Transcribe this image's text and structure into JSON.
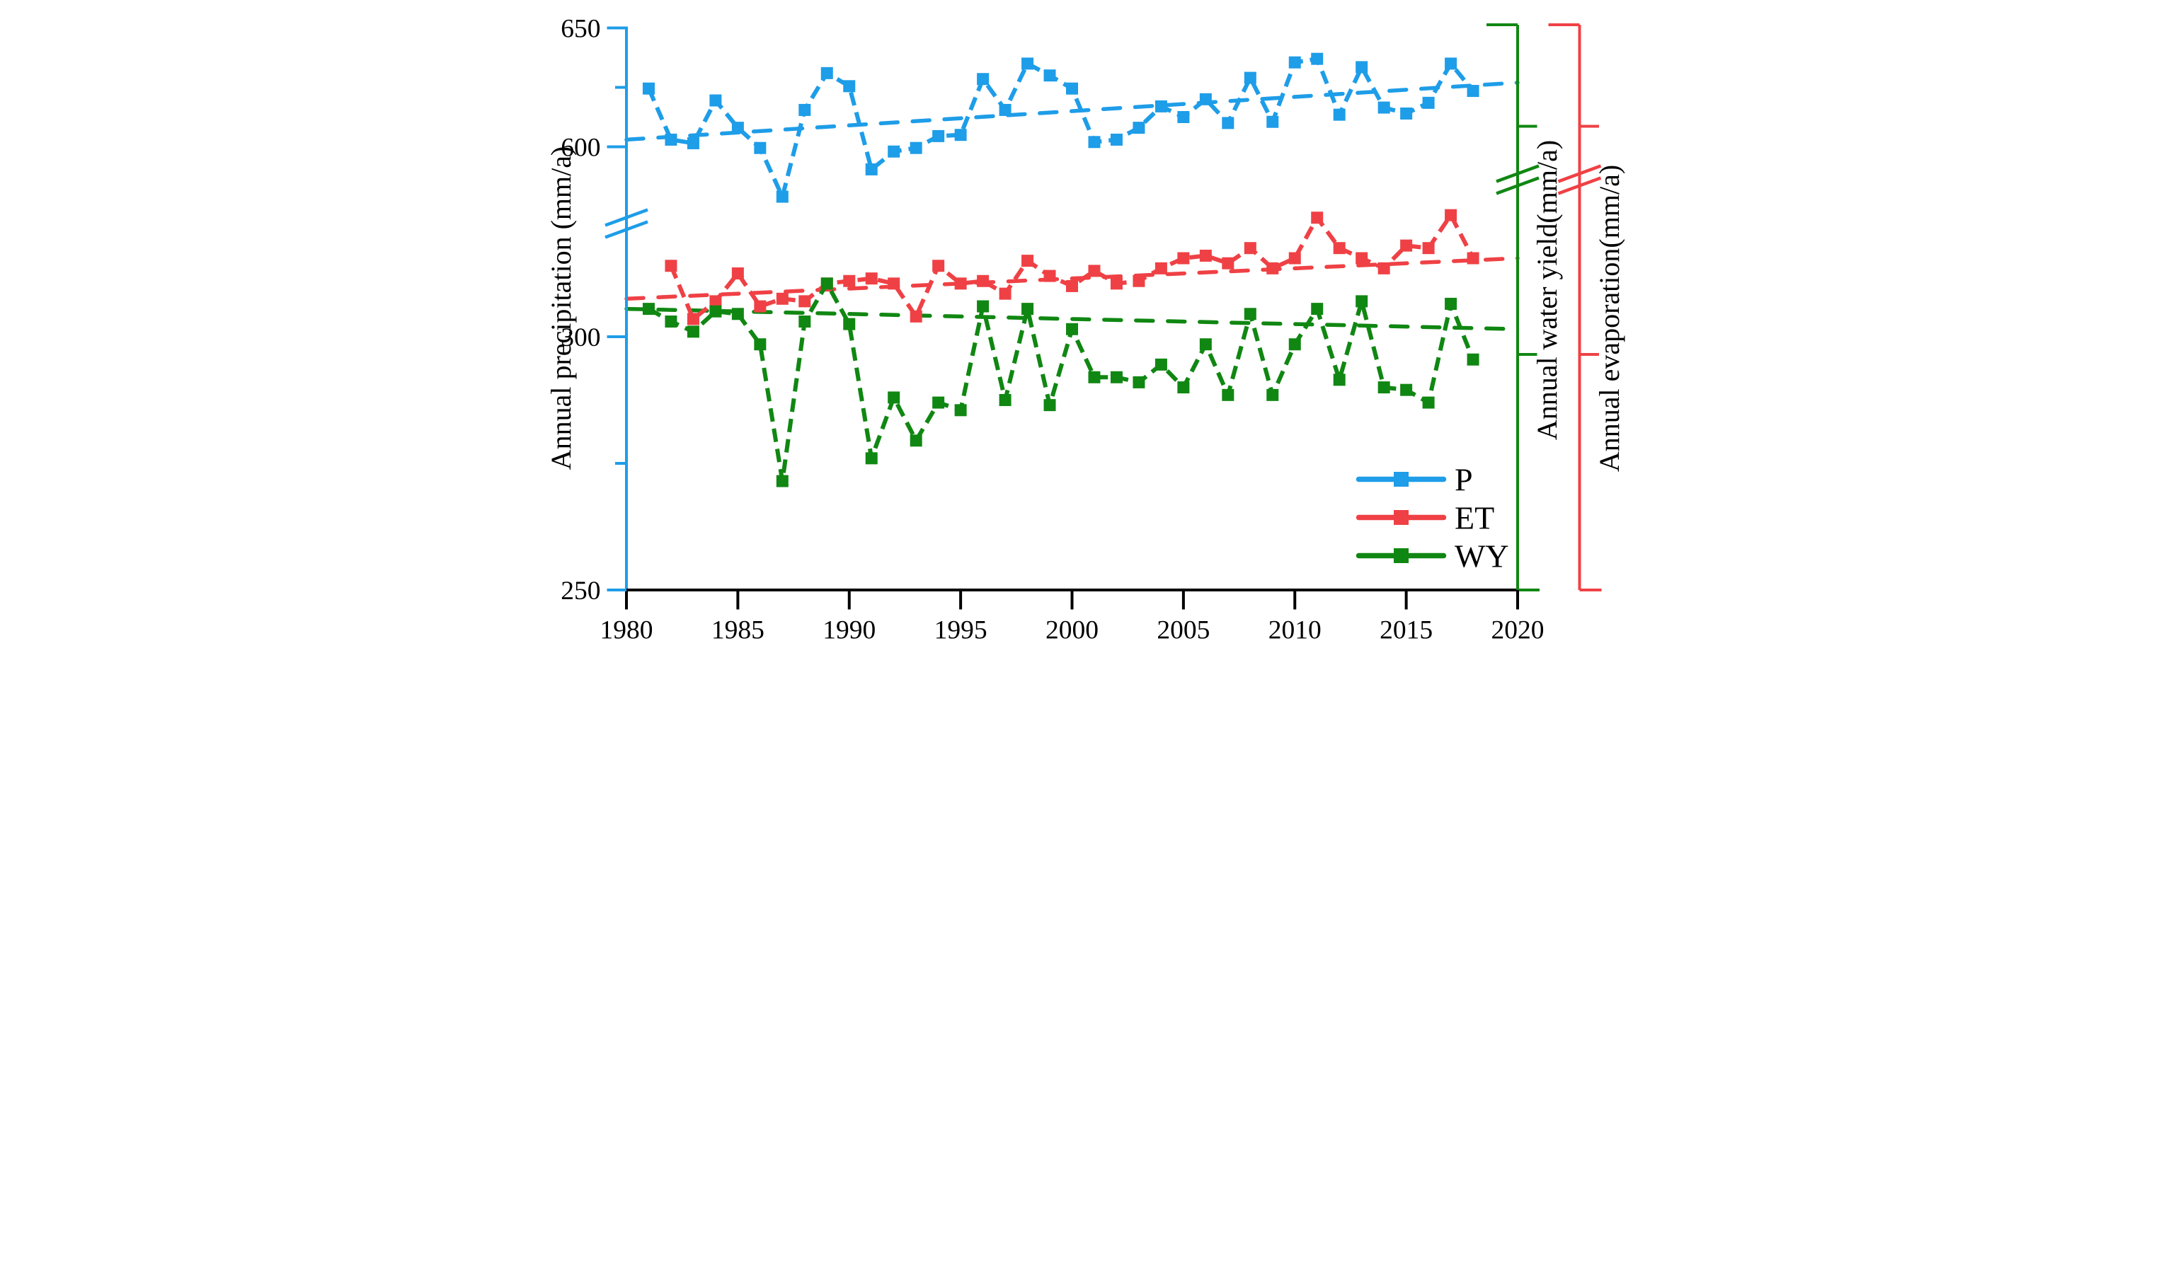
{
  "figure": {
    "background": "#ffffff",
    "left_axis": {
      "title": "Annual precipitation (mm/a)",
      "color": "#1e9de8",
      "tick_labels_upper": [
        "650",
        "600"
      ],
      "tick_labels_lower": [
        "300",
        "250"
      ],
      "has_axis_break": true
    },
    "x_axis": {
      "color": "#000000",
      "tick_labels": [
        "1980",
        "1985",
        "1990",
        "1995",
        "2000",
        "2005",
        "2010",
        "2015",
        "2020"
      ]
    },
    "right_axis_inner": {
      "title": "Annual water yield(mm/a)",
      "color": "#108712",
      "numeric_labels_visible": false,
      "has_axis_break": true
    },
    "right_axis_outer": {
      "title": "Annual evaporation(mm/a)",
      "color": "#ef4145",
      "numeric_labels_visible": false,
      "has_axis_break": true
    },
    "legend": [
      {
        "label": "P",
        "color": "#1e9de8"
      },
      {
        "label": "ET",
        "color": "#ef4145"
      },
      {
        "label": "WY",
        "color": "#108712"
      }
    ]
  },
  "chart_data": {
    "type": "line",
    "title": "",
    "xlabel": "",
    "x_range": [
      1980,
      2020
    ],
    "x_tick_values": [
      1980,
      1985,
      1990,
      1995,
      2000,
      2005,
      2010,
      2015,
      2020
    ],
    "left_axis_upper_ticks": [
      600,
      650
    ],
    "left_axis_lower_ticks": [
      250,
      300
    ],
    "axis_break": true,
    "grid": false,
    "legend_position": "lower right",
    "x": [
      1981,
      1982,
      1983,
      1984,
      1985,
      1986,
      1987,
      1988,
      1989,
      1990,
      1991,
      1992,
      1993,
      1994,
      1995,
      1996,
      1997,
      1998,
      1999,
      2000,
      2001,
      2002,
      2003,
      2004,
      2005,
      2006,
      2007,
      2008,
      2009,
      2010,
      2011,
      2012,
      2013,
      2014,
      2015,
      2016,
      2017,
      2018
    ],
    "series": [
      {
        "name": "P",
        "axis": "left (mm/a)",
        "color": "#1e9de8",
        "values": [
          624.5,
          603,
          601.5,
          619.5,
          608,
          599.5,
          579,
          615.5,
          631,
          625.5,
          590.5,
          598,
          599.5,
          604.5,
          605,
          628.5,
          615.5,
          635,
          630,
          624.5,
          602,
          603,
          608,
          617,
          612.5,
          620,
          610,
          629,
          610.5,
          635.5,
          637,
          613.5,
          633.5,
          616.5,
          614,
          618.5,
          635,
          623.5
        ]
      },
      {
        "name": "ET",
        "axis": "right outer, unlabeled (values estimated, mm/a)",
        "color": "#ef4145",
        "values": [
          null,
          314,
          303.5,
          307,
          312.5,
          306,
          307.5,
          307,
          310.5,
          311,
          311.5,
          310.5,
          304,
          314,
          310.5,
          311,
          308.5,
          315,
          312,
          310,
          313,
          310.5,
          311,
          313.5,
          315.5,
          316,
          314.5,
          317.5,
          313.5,
          315.5,
          323.5,
          317.5,
          315.5,
          313.5,
          318,
          317.5,
          324,
          315.5
        ]
      },
      {
        "name": "WY",
        "axis": "right inner, unlabeled (values estimated, mm/a)",
        "color": "#108712",
        "values": [
          305.5,
          303,
          301,
          305,
          304.5,
          298.5,
          271.5,
          303,
          310.5,
          302.5,
          276,
          288,
          279.5,
          287,
          285.5,
          306,
          287.5,
          305.5,
          286.5,
          301.5,
          292,
          292,
          291,
          294.5,
          290,
          298.5,
          288.5,
          304.5,
          288.5,
          298.5,
          305.5,
          291.5,
          307,
          290,
          289.5,
          287,
          306.5,
          295.5
        ]
      }
    ],
    "trend_lines": [
      {
        "series": "P",
        "style": "dashed",
        "from_1980": 603,
        "to_2020": 627
      },
      {
        "series": "ET",
        "style": "dashed",
        "from_1980": 307.5,
        "to_2020": 315.5
      },
      {
        "series": "WY",
        "style": "dashed",
        "from_1980": 305.5,
        "to_2020": 301.5
      }
    ]
  }
}
